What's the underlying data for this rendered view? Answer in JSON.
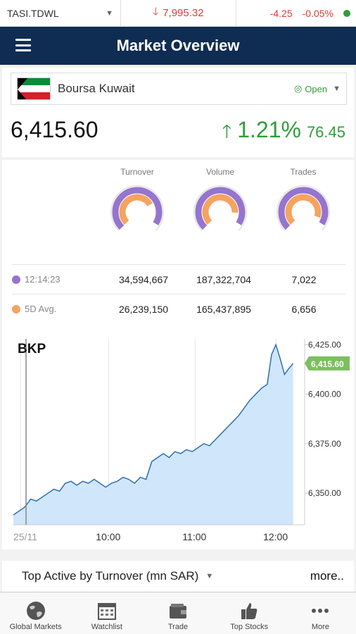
{
  "ticker": {
    "symbol": "TASI.TDWL",
    "price": "7,995.32",
    "change": "-4.25",
    "change_pct": "-0.05%",
    "status_color": "#2e9e3a",
    "down_color": "#e53935"
  },
  "header": {
    "title": "Market Overview"
  },
  "market": {
    "name": "Boursa Kuwait",
    "status": "Open",
    "index_value": "6,415.60",
    "change_pct": "1.21%",
    "change_pts": "76.45",
    "up_color": "#2e9e3a"
  },
  "gauges": {
    "labels": [
      "Turnover",
      "Volume",
      "Trades"
    ],
    "today_color": "#9575cd",
    "avg_color": "#f4a460",
    "turnover": {
      "today": 34594667,
      "avg": 26239150
    },
    "volume": {
      "today": 187322704,
      "avg": 165437895
    },
    "trades": {
      "today": 7022,
      "avg": 6656
    }
  },
  "stats": {
    "rows": [
      {
        "label": "12:14:23",
        "turnover": "34,594,667",
        "volume": "187,322,704",
        "trades": "7,022"
      },
      {
        "label": "5D Avg.",
        "turnover": "26,239,150",
        "volume": "165,437,895",
        "trades": "6,656"
      }
    ]
  },
  "chart_data": {
    "type": "area",
    "title": "BKP",
    "x_ticks": [
      "25/11",
      "10:00",
      "11:00",
      "12:00"
    ],
    "y_ticks": [
      "6,350.00",
      "6,375.00",
      "6,400.00",
      "6,425.00"
    ],
    "ylim": [
      6334,
      6428
    ],
    "last_label": "6,415.60",
    "fill_color": "#cfe6fb",
    "line_color": "#2f6fb3",
    "label_color": "#7cbf5f",
    "series": [
      {
        "t": 0.0,
        "v": 6339
      },
      {
        "t": 0.02,
        "v": 6341
      },
      {
        "t": 0.04,
        "v": 6343
      },
      {
        "t": 0.06,
        "v": 6347
      },
      {
        "t": 0.08,
        "v": 6346
      },
      {
        "t": 0.1,
        "v": 6348
      },
      {
        "t": 0.12,
        "v": 6350
      },
      {
        "t": 0.14,
        "v": 6352
      },
      {
        "t": 0.16,
        "v": 6351
      },
      {
        "t": 0.18,
        "v": 6355
      },
      {
        "t": 0.2,
        "v": 6356
      },
      {
        "t": 0.22,
        "v": 6354
      },
      {
        "t": 0.24,
        "v": 6356
      },
      {
        "t": 0.26,
        "v": 6355
      },
      {
        "t": 0.28,
        "v": 6357
      },
      {
        "t": 0.3,
        "v": 6355
      },
      {
        "t": 0.32,
        "v": 6353
      },
      {
        "t": 0.34,
        "v": 6355
      },
      {
        "t": 0.36,
        "v": 6356
      },
      {
        "t": 0.38,
        "v": 6358
      },
      {
        "t": 0.4,
        "v": 6357
      },
      {
        "t": 0.42,
        "v": 6355
      },
      {
        "t": 0.44,
        "v": 6358
      },
      {
        "t": 0.46,
        "v": 6357
      },
      {
        "t": 0.48,
        "v": 6366
      },
      {
        "t": 0.5,
        "v": 6368
      },
      {
        "t": 0.52,
        "v": 6370
      },
      {
        "t": 0.54,
        "v": 6368
      },
      {
        "t": 0.56,
        "v": 6371
      },
      {
        "t": 0.58,
        "v": 6370
      },
      {
        "t": 0.6,
        "v": 6372
      },
      {
        "t": 0.62,
        "v": 6371
      },
      {
        "t": 0.64,
        "v": 6373
      },
      {
        "t": 0.66,
        "v": 6375
      },
      {
        "t": 0.68,
        "v": 6374
      },
      {
        "t": 0.7,
        "v": 6377
      },
      {
        "t": 0.72,
        "v": 6380
      },
      {
        "t": 0.74,
        "v": 6383
      },
      {
        "t": 0.76,
        "v": 6386
      },
      {
        "t": 0.78,
        "v": 6389
      },
      {
        "t": 0.8,
        "v": 6393
      },
      {
        "t": 0.82,
        "v": 6397
      },
      {
        "t": 0.84,
        "v": 6400
      },
      {
        "t": 0.86,
        "v": 6403
      },
      {
        "t": 0.88,
        "v": 6405
      },
      {
        "t": 0.895,
        "v": 6420
      },
      {
        "t": 0.91,
        "v": 6425
      },
      {
        "t": 0.925,
        "v": 6418
      },
      {
        "t": 0.94,
        "v": 6410
      },
      {
        "t": 0.955,
        "v": 6413
      },
      {
        "t": 0.97,
        "v": 6415.6
      }
    ]
  },
  "top_active": {
    "title": "Top Active by Turnover (mn SAR)",
    "more": "more.."
  },
  "nav": {
    "items": [
      {
        "label": "Global Markets",
        "icon": "globe-icon"
      },
      {
        "label": "Watchlist",
        "icon": "calendar-icon"
      },
      {
        "label": "Trade",
        "icon": "wallet-icon"
      },
      {
        "label": "Top Stocks",
        "icon": "thumbs-up-icon"
      },
      {
        "label": "More",
        "icon": "more-dots-icon"
      }
    ]
  }
}
